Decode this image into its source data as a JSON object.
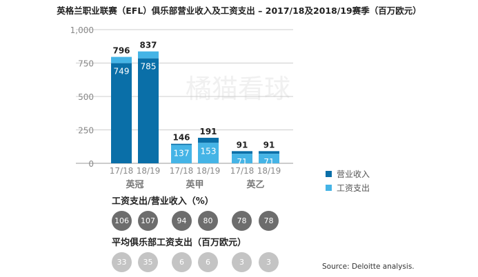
{
  "chart_data": {
    "type": "bar",
    "title": "英格兰职业联赛（EFL）俱乐部营业收入及工资支出 – 2017/18及2018/19赛季（百万欧元）",
    "watermark": "橘猫看球",
    "ylim": [
      0,
      1000
    ],
    "yticks": [
      "0",
      "250",
      "500",
      "750",
      "1,000"
    ],
    "ytick_values": [
      0,
      250,
      500,
      750,
      1000
    ],
    "groups": [
      "英冠",
      "英甲",
      "英乙"
    ],
    "categories": [
      "17/18",
      "18/19",
      "17/18",
      "18/19",
      "17/18",
      "18/19"
    ],
    "group_index": [
      0,
      0,
      1,
      1,
      2,
      2
    ],
    "series": [
      {
        "name": "营业收入",
        "color": "#0a6fa8",
        "values": [
          749,
          785,
          146,
          191,
          91,
          91
        ]
      },
      {
        "name": "工资支出",
        "color": "#45b4e6",
        "values": [
          796,
          837,
          137,
          153,
          71,
          71
        ]
      }
    ],
    "legend_position": "right",
    "ratio_title": "工资支出/营业收入（%）",
    "ratio_values": [
      "106",
      "107",
      "94",
      "80",
      "78",
      "78"
    ],
    "avg_title": "平均俱乐部工资支出（百万欧元）",
    "avg_values": [
      "33",
      "35",
      "6",
      "6",
      "3",
      "3"
    ],
    "source": "Source: Deloitte analysis."
  }
}
